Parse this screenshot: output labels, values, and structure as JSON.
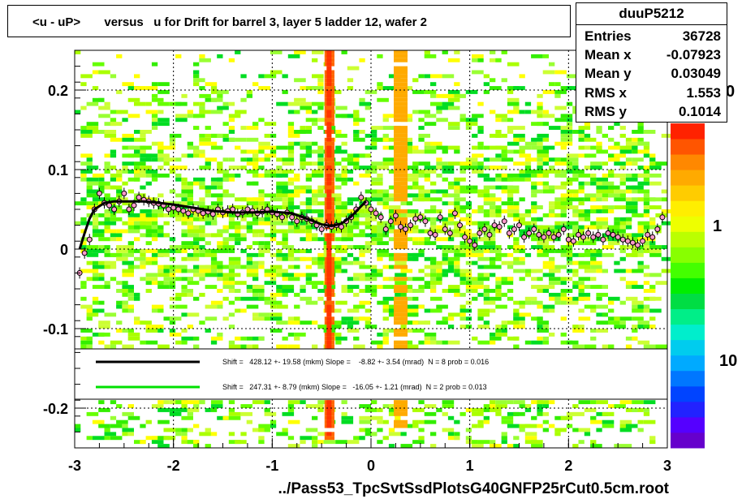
{
  "title": "<u - uP>       versus   u for Drift for barrel 3, layer 5 ladder 12, wafer 2",
  "stats": {
    "name": "duuP5212",
    "rows": [
      {
        "label": "Entries",
        "value": "36728"
      },
      {
        "label": "Mean x",
        "value": "-0.07923"
      },
      {
        "label": "Mean y",
        "value": "0.03049"
      },
      {
        "label": "RMS x",
        "value": "1.553"
      },
      {
        "label": "RMS y",
        "value": "0.1014"
      }
    ]
  },
  "footer": "../Pass53_TpcSvtSsdPlotsG40GNFP25rCut0.5cm.root",
  "legend": {
    "line1": "Shift =   428.12 +- 19.58 (mkm) Slope =    -8.82 +- 3.54 (mrad)  N = 8 prob = 0.016",
    "line2": "Shift =   247.31 +- 8.79 (mkm) Slope =   -16.05 +- 1.21 (mrad)  N = 2 prob = 0.013",
    "color1": "#000000",
    "color2": "#00e000"
  },
  "palette_labels": [
    "0",
    "1",
    "10"
  ],
  "chart_data": {
    "type": "scatter",
    "xlim": [
      -3,
      3
    ],
    "ylim": [
      -0.25,
      0.25
    ],
    "xticks": [
      "-3",
      "-2",
      "-1",
      "0",
      "1",
      "2",
      "3"
    ],
    "yticks": [
      "0.2",
      "0.1",
      "0",
      "-0.1",
      "-0.2"
    ],
    "grid": true,
    "fit_curve": {
      "x": [
        -2.95,
        -2.9,
        -2.85,
        -2.8,
        -2.7,
        -2.6,
        -2.5,
        -2.4,
        -2.3,
        -2.2,
        -2.0,
        -1.8,
        -1.6,
        -1.4,
        -1.2,
        -1.0,
        -0.8,
        -0.6,
        -0.5,
        -0.4,
        -0.3,
        -0.2,
        -0.1,
        -0.05
      ],
      "y": [
        0.0,
        0.02,
        0.038,
        0.05,
        0.058,
        0.06,
        0.06,
        0.06,
        0.06,
        0.059,
        0.056,
        0.052,
        0.048,
        0.046,
        0.046,
        0.047,
        0.045,
        0.036,
        0.031,
        0.029,
        0.032,
        0.041,
        0.054,
        0.06
      ]
    },
    "profile_points": {
      "x": [
        -2.95,
        -2.9,
        -2.85,
        -2.8,
        -2.75,
        -2.7,
        -2.65,
        -2.6,
        -2.55,
        -2.5,
        -2.45,
        -2.4,
        -2.35,
        -2.3,
        -2.25,
        -2.2,
        -2.15,
        -2.1,
        -2.05,
        -2.0,
        -1.95,
        -1.9,
        -1.85,
        -1.8,
        -1.75,
        -1.7,
        -1.65,
        -1.6,
        -1.55,
        -1.5,
        -1.45,
        -1.4,
        -1.35,
        -1.3,
        -1.25,
        -1.2,
        -1.15,
        -1.1,
        -1.05,
        -1.0,
        -0.95,
        -0.9,
        -0.85,
        -0.8,
        -0.75,
        -0.7,
        -0.65,
        -0.6,
        -0.55,
        -0.5,
        -0.45,
        -0.4,
        -0.35,
        -0.3,
        -0.25,
        -0.2,
        -0.15,
        -0.1,
        -0.05,
        0.0,
        0.05,
        0.1,
        0.15,
        0.2,
        0.25,
        0.3,
        0.35,
        0.4,
        0.45,
        0.5,
        0.55,
        0.6,
        0.65,
        0.7,
        0.75,
        0.8,
        0.85,
        0.9,
        0.95,
        1.0,
        1.05,
        1.1,
        1.15,
        1.2,
        1.25,
        1.3,
        1.35,
        1.4,
        1.45,
        1.5,
        1.55,
        1.6,
        1.65,
        1.7,
        1.75,
        1.8,
        1.85,
        1.9,
        1.95,
        2.0,
        2.05,
        2.1,
        2.15,
        2.2,
        2.25,
        2.3,
        2.35,
        2.4,
        2.45,
        2.5,
        2.55,
        2.6,
        2.65,
        2.7,
        2.75,
        2.8,
        2.85,
        2.9,
        2.95
      ],
      "y": [
        -0.03,
        -0.005,
        0.012,
        0.05,
        0.07,
        0.058,
        0.055,
        0.05,
        0.06,
        0.07,
        0.05,
        0.055,
        0.065,
        0.062,
        0.06,
        0.058,
        0.057,
        0.055,
        0.05,
        0.052,
        0.05,
        0.048,
        0.045,
        0.05,
        0.048,
        0.045,
        0.047,
        0.044,
        0.05,
        0.046,
        0.048,
        0.05,
        0.044,
        0.046,
        0.05,
        0.048,
        0.045,
        0.047,
        0.05,
        0.046,
        0.044,
        0.04,
        0.046,
        0.04,
        0.035,
        0.04,
        0.038,
        0.035,
        0.03,
        0.025,
        0.03,
        0.028,
        0.03,
        0.028,
        0.035,
        0.04,
        0.05,
        0.065,
        0.058,
        0.05,
        0.045,
        0.04,
        0.025,
        0.035,
        0.042,
        0.028,
        0.025,
        0.03,
        0.038,
        0.04,
        0.035,
        0.02,
        0.018,
        0.04,
        0.025,
        0.02,
        0.045,
        0.03,
        0.015,
        0.01,
        0.005,
        0.02,
        0.025,
        0.018,
        0.03,
        0.028,
        0.035,
        0.02,
        0.025,
        0.03,
        0.015,
        0.02,
        0.025,
        0.018,
        0.015,
        0.02,
        0.015,
        0.018,
        0.025,
        0.012,
        0.01,
        0.018,
        0.015,
        0.02,
        0.015,
        0.018,
        0.012,
        0.02,
        0.018,
        0.015,
        0.012,
        0.01,
        0.008,
        0.005,
        0.01,
        0.018,
        0.015,
        0.025,
        0.04
      ]
    }
  }
}
